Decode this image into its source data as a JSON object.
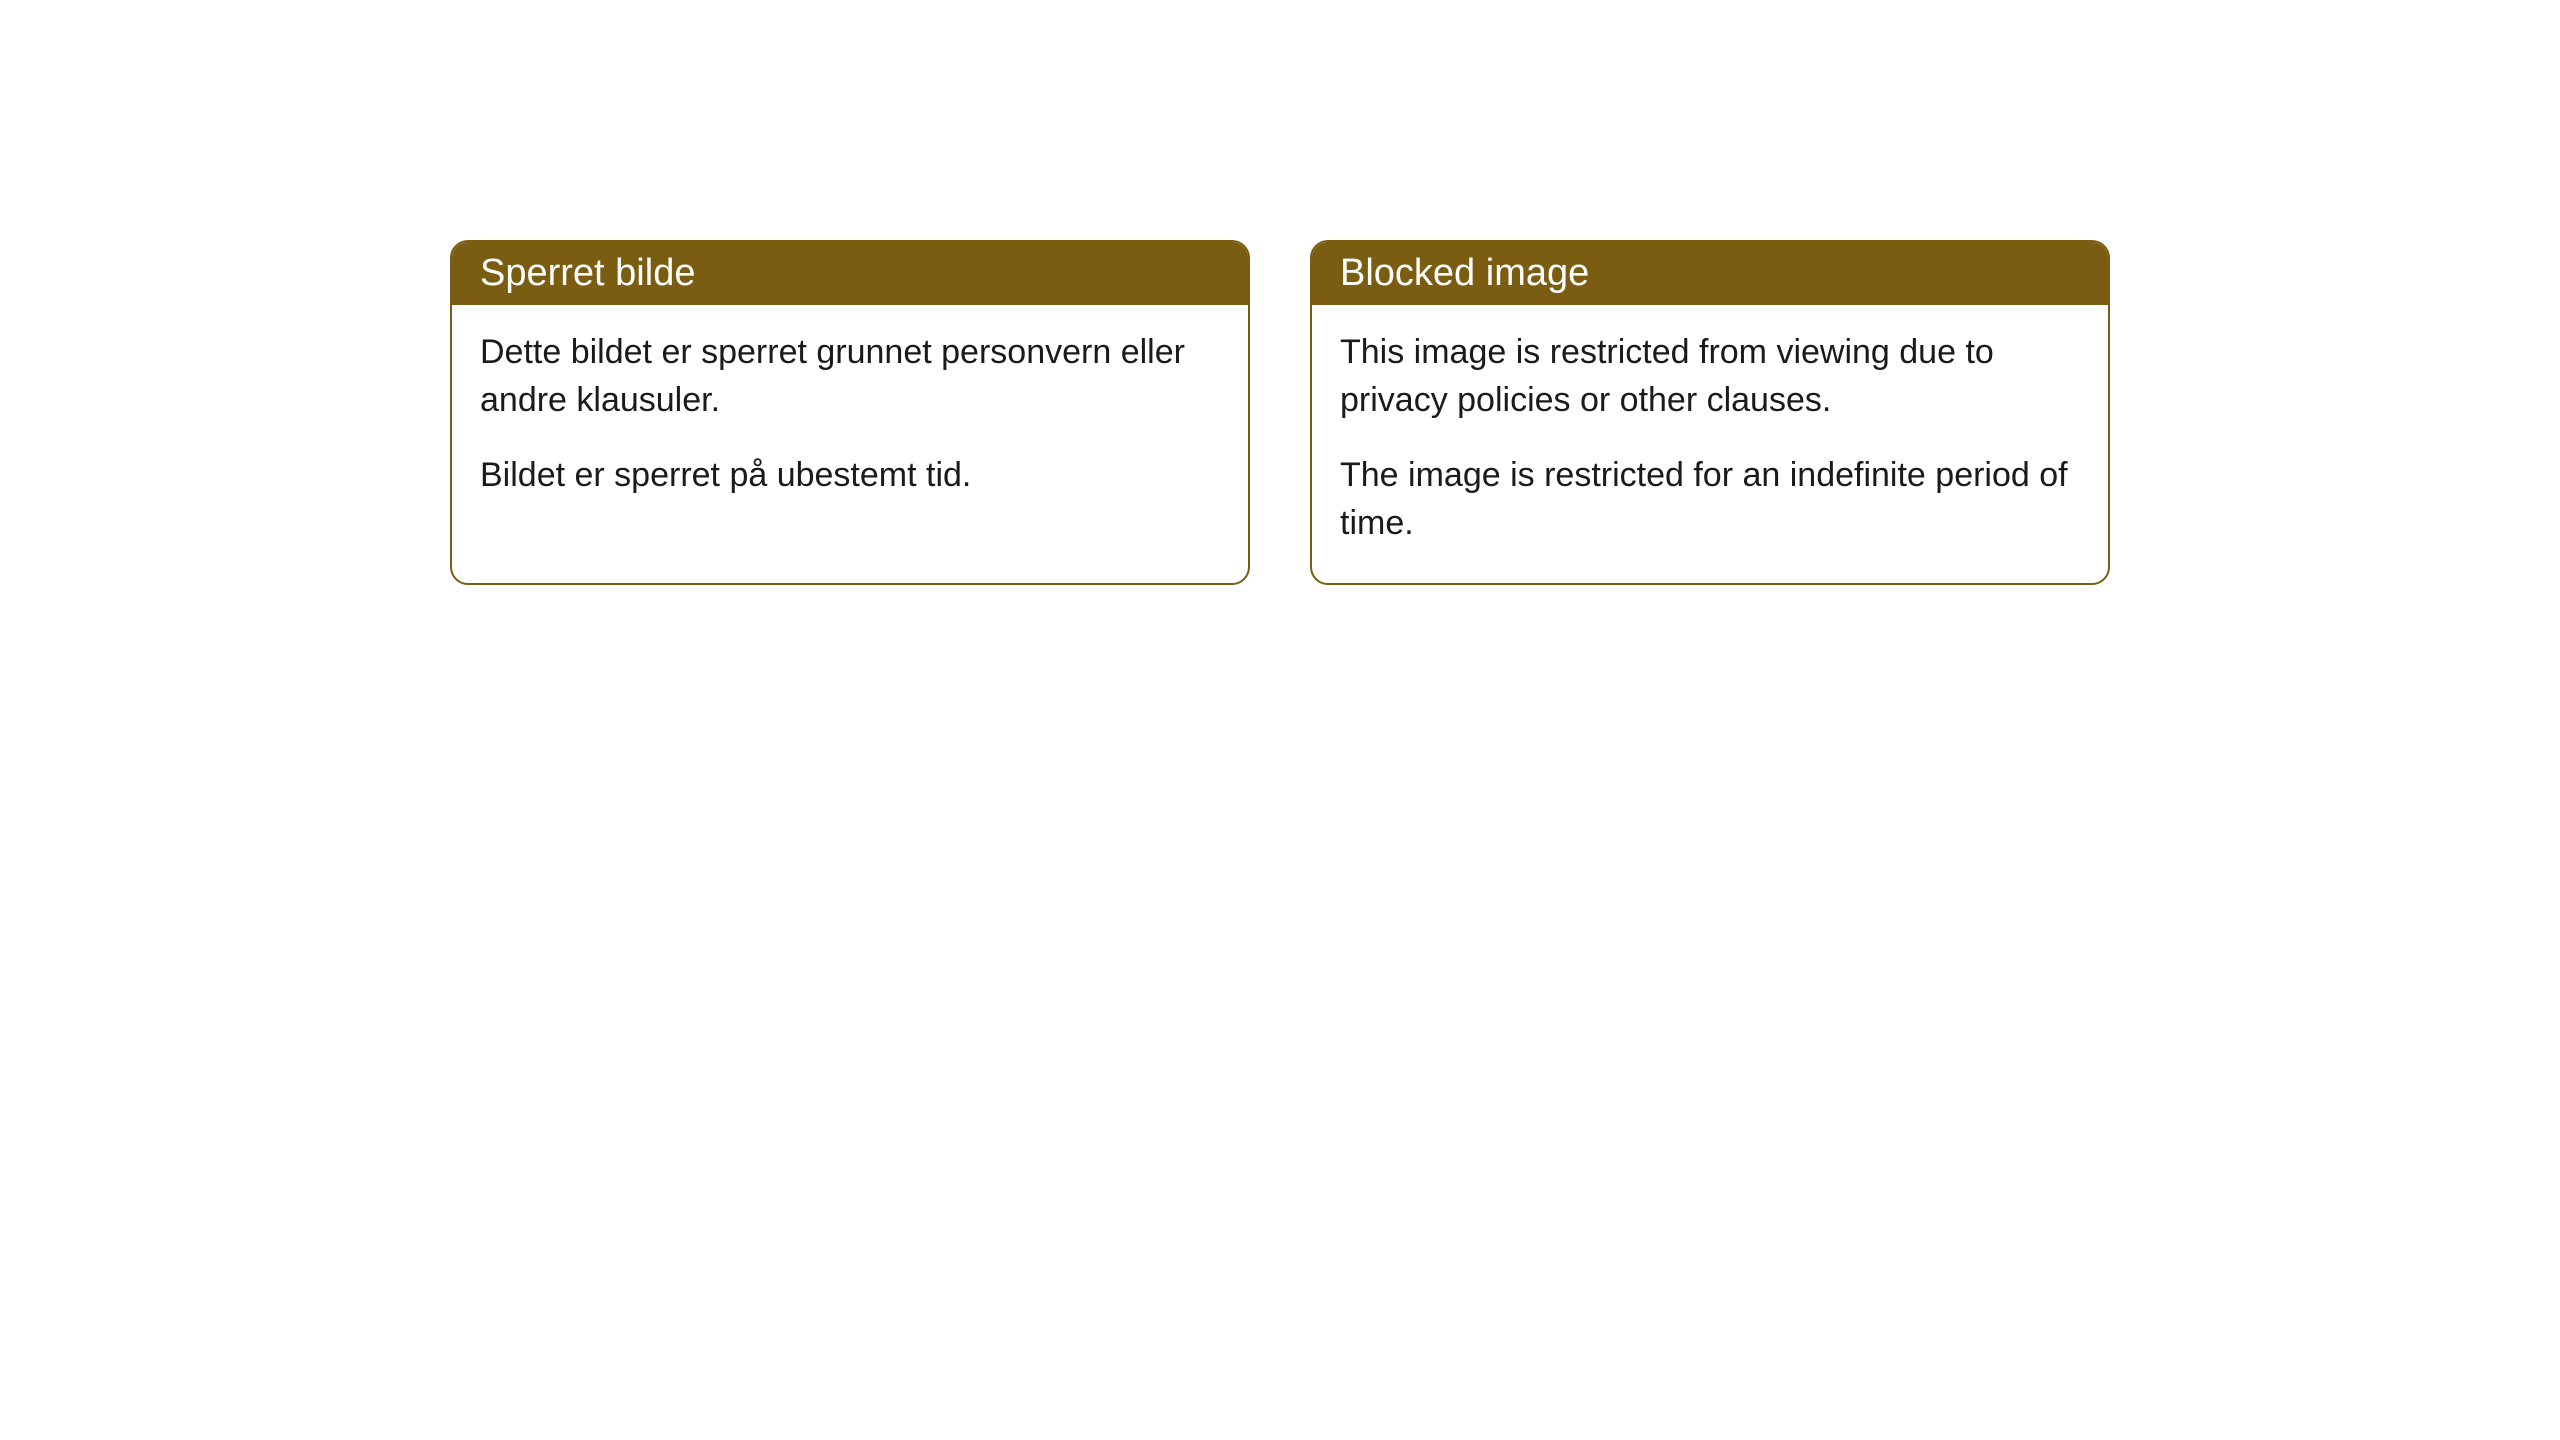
{
  "cards": {
    "norwegian": {
      "title": "Sperret bilde",
      "paragraph1": "Dette bildet er sperret grunnet personvern eller andre klausuler.",
      "paragraph2": "Bildet er sperret på ubestemt tid."
    },
    "english": {
      "title": "Blocked image",
      "paragraph1": "This image is restricted from viewing due to privacy policies or other clauses.",
      "paragraph2": "The image is restricted for an indefinite period of time."
    }
  },
  "styling": {
    "header_bg_color": "#7a5d11",
    "header_text_color": "#ffffff",
    "border_color": "#7a5d11",
    "body_bg_color": "#ffffff",
    "body_text_color": "#1a1a1a",
    "border_radius": 18,
    "header_fontsize": 38,
    "body_fontsize": 34
  }
}
